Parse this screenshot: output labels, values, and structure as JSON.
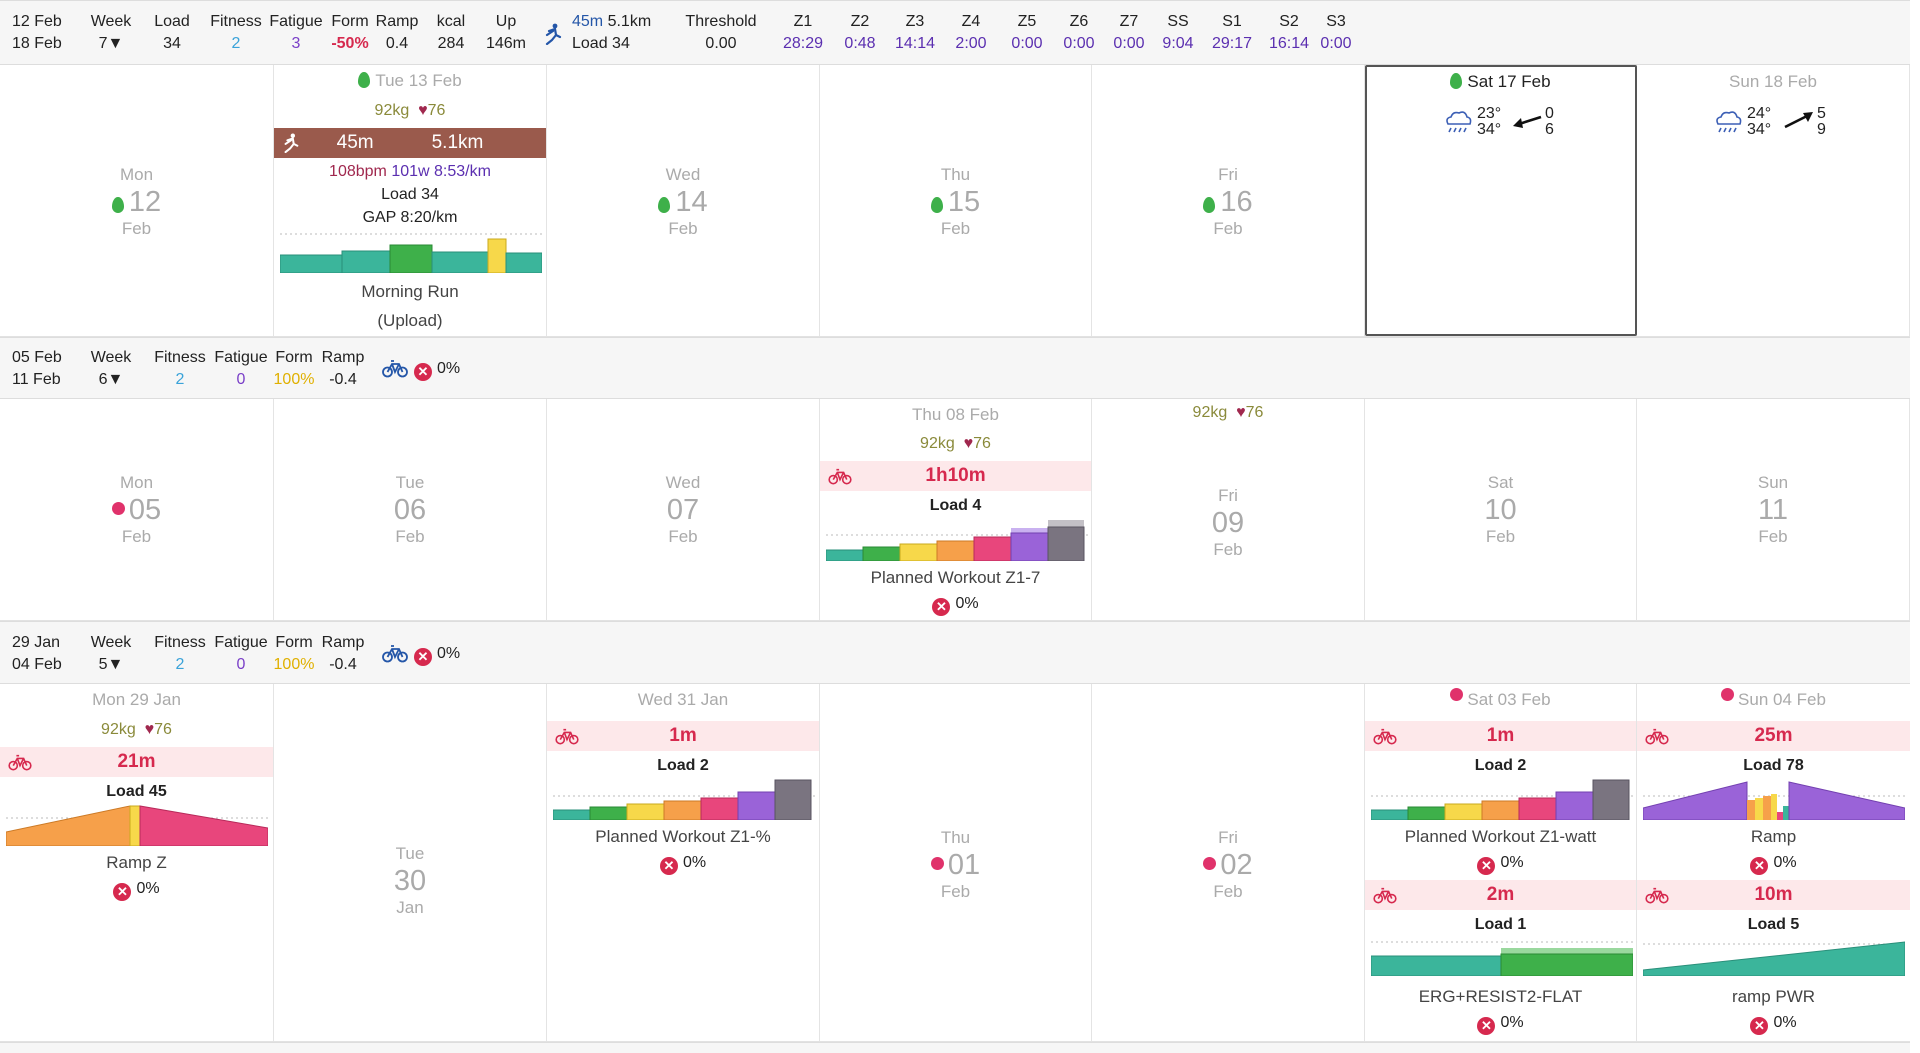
{
  "weeks": [
    {
      "range": [
        "12 Feb",
        "18 Feb"
      ],
      "week": "7",
      "load": "34",
      "fitness": "2",
      "fatigue": "3",
      "form": "-50%",
      "ramp": "0.4",
      "kcal": "284",
      "up": "146m",
      "run": {
        "dur": "45m",
        "dist": "5.1km",
        "load": "Load 34"
      },
      "threshold": "0.00",
      "zones": [
        [
          "Z1",
          "28:29"
        ],
        [
          "Z2",
          "0:48"
        ],
        [
          "Z3",
          "14:14"
        ],
        [
          "Z4",
          "2:00"
        ],
        [
          "Z5",
          "0:00"
        ],
        [
          "Z6",
          "0:00"
        ],
        [
          "Z7",
          "0:00"
        ],
        [
          "SS",
          "9:04"
        ],
        [
          "S1",
          "29:17"
        ],
        [
          "S2",
          "16:14"
        ],
        [
          "S3",
          "0:00"
        ]
      ]
    },
    {
      "range": [
        "05 Feb",
        "11 Feb"
      ],
      "week": "6",
      "fitness": "2",
      "fatigue": "0",
      "form": "100%",
      "ramp": "-0.4",
      "compliance": "0%"
    },
    {
      "range": [
        "29 Jan",
        "04 Feb"
      ],
      "week": "5",
      "fitness": "2",
      "fatigue": "0",
      "form": "100%",
      "ramp": "-0.4",
      "compliance": "0%"
    }
  ],
  "labels": {
    "week": "Week",
    "load": "Load",
    "fitness": "Fitness",
    "fatigue": "Fatigue",
    "form": "Form",
    "ramp": "Ramp",
    "kcal": "kcal",
    "up": "Up",
    "threshold": "Threshold"
  },
  "w1": {
    "mon": {
      "dn": "Mon",
      "dd": "12",
      "dm": "Feb"
    },
    "tue": {
      "hdr": "Tue 13 Feb",
      "weight": "92kg",
      "hr": "76",
      "dur": "45m",
      "dist": "5.1km",
      "stats1": "108bpm",
      "stats2": "101w",
      "stats3": "8:53/km",
      "load": "Load 34",
      "gap": "GAP 8:20/km",
      "name": "Morning Run",
      "sub": "(Upload)"
    },
    "wed": {
      "dn": "Wed",
      "dd": "14",
      "dm": "Feb"
    },
    "thu": {
      "dn": "Thu",
      "dd": "15",
      "dm": "Feb"
    },
    "fri": {
      "dn": "Fri",
      "dd": "16",
      "dm": "Feb"
    },
    "sat": {
      "hdr": "Sat 17 Feb",
      "t1": "23°",
      "t2": "34°",
      "w1": "0",
      "w2": "6"
    },
    "sun": {
      "hdr": "Sun 18 Feb",
      "t1": "24°",
      "t2": "34°",
      "w1": "5",
      "w2": "9"
    }
  },
  "w2": {
    "mon": {
      "dn": "Mon",
      "dd": "05",
      "dm": "Feb"
    },
    "tue": {
      "dn": "Tue",
      "dd": "06",
      "dm": "Feb"
    },
    "wed": {
      "dn": "Wed",
      "dd": "07",
      "dm": "Feb"
    },
    "thu": {
      "hdr": "Thu 08 Feb",
      "weight": "92kg",
      "hr": "76",
      "dur": "1h10m",
      "load": "Load 4",
      "name": "Planned Workout Z1-7",
      "pct": "0%"
    },
    "fri": {
      "weight": "92kg",
      "hr": "76",
      "dn": "Fri",
      "dd": "09",
      "dm": "Feb"
    },
    "sat": {
      "dn": "Sat",
      "dd": "10",
      "dm": "Feb"
    },
    "sun": {
      "dn": "Sun",
      "dd": "11",
      "dm": "Feb"
    }
  },
  "w3": {
    "mon": {
      "hdr": "Mon 29 Jan",
      "weight": "92kg",
      "hr": "76",
      "dur": "21m",
      "load": "Load 45",
      "name": "Ramp Z",
      "pct": "0%"
    },
    "tue": {
      "dn": "Tue",
      "dd": "30",
      "dm": "Jan"
    },
    "wed": {
      "hdr": "Wed 31 Jan",
      "dur": "1m",
      "load": "Load 2",
      "name": "Planned Workout Z1-%",
      "pct": "0%"
    },
    "thu": {
      "dn": "Thu",
      "dd": "01",
      "dm": "Feb"
    },
    "fri": {
      "dn": "Fri",
      "dd": "02",
      "dm": "Feb"
    },
    "sat": {
      "hdr": "Sat 03 Feb",
      "a": {
        "dur": "1m",
        "load": "Load 2",
        "name": "Planned Workout Z1-watt",
        "pct": "0%"
      },
      "b": {
        "dur": "2m",
        "load": "Load 1",
        "name": "ERG+RESIST2-FLAT",
        "pct": "0%"
      }
    },
    "sun": {
      "hdr": "Sun 04 Feb",
      "a": {
        "dur": "25m",
        "load": "Load 78",
        "name": "Ramp",
        "pct": "0%"
      },
      "b": {
        "dur": "10m",
        "load": "Load 5",
        "name": "ramp PWR",
        "pct": "0%"
      }
    }
  },
  "colors": {
    "z1": "#3bb59b",
    "z2": "#3eb04a",
    "z3": "#f7d84a",
    "z4": "#f6a04a",
    "z5": "#e8467c",
    "z6": "#9a63d8",
    "z7": "#7a7480",
    "run": "#9a5a4c",
    "band": "#fde8ea",
    "red": "#d6294e"
  },
  "icons": {
    "run": "runner-icon",
    "bike": "bike-icon",
    "cancel": "cancel-icon",
    "heart": "heart-icon",
    "drop": "fitness-drop-icon",
    "weather": "rain-cloud-icon",
    "wind": "wind-arrow-icon"
  }
}
